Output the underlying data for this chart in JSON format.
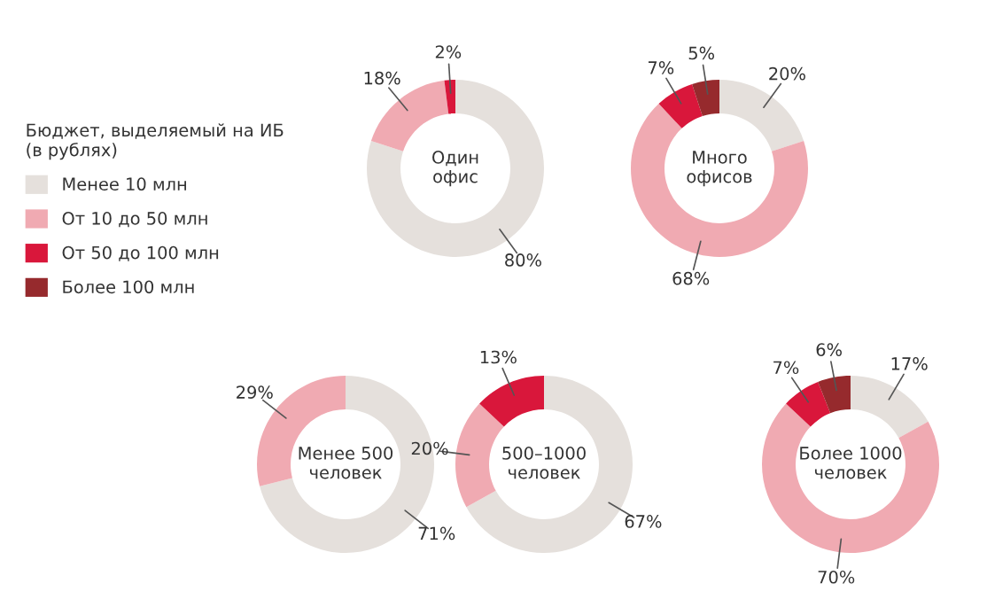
{
  "chart_data": [
    {
      "type": "donut",
      "title": "Один\nофис",
      "legend_title": "Бюджет, выделяемый на ИБ\n(в рублях)",
      "legend": "left",
      "categories": [
        "Менее 10 млн",
        "От 10 до 50 млн",
        "От 50 до 100 млн",
        "Более 100 млн"
      ],
      "values": [
        80,
        18,
        2,
        null
      ],
      "value_labels": [
        "80%",
        "18%",
        "2%",
        null
      ],
      "colors": [
        "#e5e0dc",
        "#f0aab2",
        "#d9173b",
        "#962a2d"
      ]
    },
    {
      "type": "donut",
      "title": "Много\nофисов",
      "categories": [
        null,
        null,
        null,
        null
      ],
      "values": [
        20,
        68,
        7,
        5
      ],
      "value_labels": [
        "20%",
        "68%",
        "7%",
        "5%"
      ],
      "colors": [
        "#e5e0dc",
        "#f0aab2",
        "#d9173b",
        "#962a2d"
      ]
    },
    {
      "type": "donut",
      "title": "Менее 500\nчеловек",
      "categories": [
        null,
        null
      ],
      "values": [
        71,
        29
      ],
      "value_labels": [
        "71%",
        "29%"
      ],
      "colors": [
        "#e5e0dc",
        "#f0aab2"
      ]
    },
    {
      "type": "donut",
      "title": "500–1000\nчеловек",
      "categories": [
        null,
        null,
        null
      ],
      "values": [
        67,
        20,
        13
      ],
      "value_labels": [
        "67%",
        "20%",
        "13%"
      ],
      "colors": [
        "#e5e0dc",
        "#f0aab2",
        "#d9173b"
      ]
    },
    {
      "type": "donut",
      "title": "Более 1000\nчеловек",
      "categories": [
        null,
        null,
        null,
        null
      ],
      "values": [
        17,
        70,
        7,
        6
      ],
      "value_labels": [
        "17%",
        "70%",
        "7%",
        "6%"
      ],
      "colors": [
        "#e5e0dc",
        "#f0aab2",
        "#d9173b",
        "#962a2d"
      ]
    }
  ]
}
